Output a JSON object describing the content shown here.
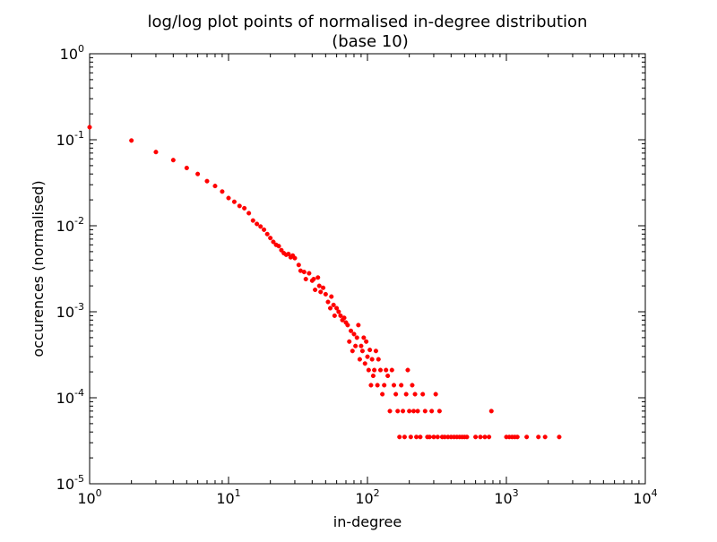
{
  "chart_data": {
    "type": "scatter",
    "title": "log/log plot points of normalised in-degree distribution",
    "subtitle": "(base 10)",
    "xlabel": "in-degree",
    "ylabel": "occurences (normalised)",
    "x_scale": "log",
    "y_scale": "log",
    "xlim": [
      1,
      10000
    ],
    "ylim": [
      1e-05,
      1
    ],
    "x_ticks": [
      {
        "base": "10",
        "exp": "0",
        "value": 1
      },
      {
        "base": "10",
        "exp": "1",
        "value": 10
      },
      {
        "base": "10",
        "exp": "2",
        "value": 100
      },
      {
        "base": "10",
        "exp": "3",
        "value": 1000
      },
      {
        "base": "10",
        "exp": "4",
        "value": 10000
      }
    ],
    "y_ticks": [
      {
        "base": "10",
        "exp": "-5",
        "value": 1e-05
      },
      {
        "base": "10",
        "exp": "-4",
        "value": 0.0001
      },
      {
        "base": "10",
        "exp": "-3",
        "value": 0.001
      },
      {
        "base": "10",
        "exp": "-2",
        "value": 0.01
      },
      {
        "base": "10",
        "exp": "-1",
        "value": 0.1
      },
      {
        "base": "10",
        "exp": "0",
        "value": 1
      }
    ],
    "grid": false,
    "marker_color": "#ff0000",
    "series": [
      {
        "points": [
          [
            1,
            0.14
          ],
          [
            2,
            0.098
          ],
          [
            3,
            0.072
          ],
          [
            4,
            0.058
          ],
          [
            5,
            0.047
          ],
          [
            6,
            0.04
          ],
          [
            7,
            0.033
          ],
          [
            8,
            0.029
          ],
          [
            9,
            0.025
          ],
          [
            10,
            0.021
          ],
          [
            11,
            0.019
          ],
          [
            12,
            0.017
          ],
          [
            13,
            0.016
          ],
          [
            14,
            0.014
          ],
          [
            15,
            0.0115
          ],
          [
            16,
            0.0105
          ],
          [
            17,
            0.0098
          ],
          [
            18,
            0.009
          ],
          [
            19,
            0.008
          ],
          [
            20,
            0.0072
          ],
          [
            21,
            0.0065
          ],
          [
            22,
            0.006
          ],
          [
            23,
            0.0058
          ],
          [
            24,
            0.0052
          ],
          [
            25,
            0.0048
          ],
          [
            26,
            0.0046
          ],
          [
            27,
            0.0047
          ],
          [
            28,
            0.0043
          ],
          [
            29,
            0.0045
          ],
          [
            30,
            0.0042
          ],
          [
            32,
            0.0035
          ],
          [
            33,
            0.003
          ],
          [
            35,
            0.0029
          ],
          [
            36,
            0.0024
          ],
          [
            38,
            0.0028
          ],
          [
            40,
            0.0023
          ],
          [
            41,
            0.0024
          ],
          [
            42,
            0.0018
          ],
          [
            44,
            0.0025
          ],
          [
            45,
            0.002
          ],
          [
            46,
            0.0017
          ],
          [
            48,
            0.0019
          ],
          [
            50,
            0.0016
          ],
          [
            52,
            0.0013
          ],
          [
            54,
            0.0011
          ],
          [
            55,
            0.0015
          ],
          [
            57,
            0.0012
          ],
          [
            58,
            0.0009
          ],
          [
            60,
            0.0011
          ],
          [
            62,
            0.001
          ],
          [
            64,
            0.0009
          ],
          [
            66,
            0.0008
          ],
          [
            68,
            0.00085
          ],
          [
            70,
            0.00075
          ],
          [
            72,
            0.0007
          ],
          [
            74,
            0.00045
          ],
          [
            76,
            0.0006
          ],
          [
            78,
            0.00035
          ],
          [
            80,
            0.00055
          ],
          [
            82,
            0.0004
          ],
          [
            84,
            0.0005
          ],
          [
            86,
            0.0007
          ],
          [
            88,
            0.00028
          ],
          [
            90,
            0.0004
          ],
          [
            92,
            0.00035
          ],
          [
            94,
            0.0005
          ],
          [
            96,
            0.00025
          ],
          [
            98,
            0.00045
          ],
          [
            100,
            0.0003
          ],
          [
            102,
            0.00021
          ],
          [
            104,
            0.00036
          ],
          [
            106,
            0.00014
          ],
          [
            108,
            0.00028
          ],
          [
            110,
            0.00018
          ],
          [
            112,
            0.00021
          ],
          [
            115,
            0.00035
          ],
          [
            118,
            0.00014
          ],
          [
            120,
            0.00028
          ],
          [
            124,
            0.00021
          ],
          [
            128,
            0.00011
          ],
          [
            132,
            0.00014
          ],
          [
            136,
            0.00021
          ],
          [
            140,
            0.00018
          ],
          [
            145,
            7e-05
          ],
          [
            150,
            0.00021
          ],
          [
            155,
            0.00014
          ],
          [
            160,
            0.00011
          ],
          [
            165,
            7e-05
          ],
          [
            170,
            3.5e-05
          ],
          [
            175,
            0.00014
          ],
          [
            180,
            7e-05
          ],
          [
            185,
            3.5e-05
          ],
          [
            190,
            0.00011
          ],
          [
            195,
            0.00021
          ],
          [
            200,
            7e-05
          ],
          [
            205,
            3.5e-05
          ],
          [
            210,
            0.00014
          ],
          [
            215,
            7e-05
          ],
          [
            220,
            0.00011
          ],
          [
            225,
            3.5e-05
          ],
          [
            230,
            7e-05
          ],
          [
            240,
            3.5e-05
          ],
          [
            250,
            0.00011
          ],
          [
            260,
            7e-05
          ],
          [
            270,
            3.5e-05
          ],
          [
            280,
            3.5e-05
          ],
          [
            290,
            7e-05
          ],
          [
            300,
            3.5e-05
          ],
          [
            310,
            0.00011
          ],
          [
            320,
            3.5e-05
          ],
          [
            330,
            7e-05
          ],
          [
            345,
            3.5e-05
          ],
          [
            360,
            3.5e-05
          ],
          [
            380,
            3.5e-05
          ],
          [
            400,
            3.5e-05
          ],
          [
            420,
            3.5e-05
          ],
          [
            440,
            3.5e-05
          ],
          [
            460,
            3.5e-05
          ],
          [
            480,
            3.5e-05
          ],
          [
            500,
            3.5e-05
          ],
          [
            520,
            3.5e-05
          ],
          [
            600,
            3.5e-05
          ],
          [
            650,
            3.5e-05
          ],
          [
            700,
            3.5e-05
          ],
          [
            750,
            3.5e-05
          ],
          [
            780,
            7e-05
          ],
          [
            1000,
            3.5e-05
          ],
          [
            1050,
            3.5e-05
          ],
          [
            1100,
            3.5e-05
          ],
          [
            1150,
            3.5e-05
          ],
          [
            1200,
            3.5e-05
          ],
          [
            1400,
            3.5e-05
          ],
          [
            1700,
            3.5e-05
          ],
          [
            1900,
            3.5e-05
          ],
          [
            2400,
            3.5e-05
          ]
        ]
      }
    ]
  }
}
